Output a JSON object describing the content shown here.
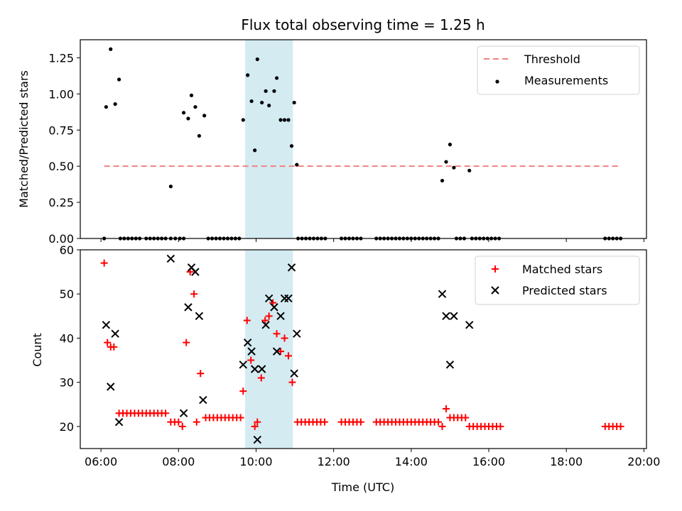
{
  "chart_data": [
    {
      "type": "scatter",
      "title": "Flux total observing time = 1.25 h",
      "xlabel": "",
      "ylabel": "Matched/Predicted stars",
      "xlim": [
        "05:28",
        "20:04"
      ],
      "ylim": [
        0,
        1.375
      ],
      "ytick_labels": [
        "0.00",
        "0.25",
        "0.50",
        "0.75",
        "1.00",
        "1.25"
      ],
      "highlight_span": [
        "09:43",
        "10:57"
      ],
      "highlight_color": "#add8e6",
      "threshold": {
        "name": "Threshold",
        "value": 0.5,
        "x_range": [
          "06:05",
          "19:25"
        ],
        "color": "#f08080",
        "style": "dashed"
      },
      "series": [
        {
          "name": "Measurements",
          "color": "#000000",
          "marker": "dot",
          "points": [
            [
              "06:05",
              0
            ],
            [
              "06:08",
              0.91
            ],
            [
              "06:15",
              1.31
            ],
            [
              "06:22",
              0.93
            ],
            [
              "06:28",
              1.1
            ],
            [
              "06:30",
              0
            ],
            [
              "06:36",
              0
            ],
            [
              "06:42",
              0
            ],
            [
              "06:48",
              0
            ],
            [
              "06:54",
              0
            ],
            [
              "07:00",
              0
            ],
            [
              "07:10",
              0
            ],
            [
              "07:16",
              0
            ],
            [
              "07:22",
              0
            ],
            [
              "07:28",
              0
            ],
            [
              "07:34",
              0
            ],
            [
              "07:40",
              0
            ],
            [
              "07:48",
              0
            ],
            [
              "07:48",
              0.36
            ],
            [
              "07:55",
              0
            ],
            [
              "08:02",
              0
            ],
            [
              "08:08",
              0
            ],
            [
              "08:08",
              0.87
            ],
            [
              "08:15",
              0.83
            ],
            [
              "08:20",
              0.99
            ],
            [
              "08:26",
              0.91
            ],
            [
              "08:32",
              0.71
            ],
            [
              "08:40",
              0.85
            ],
            [
              "08:46",
              0
            ],
            [
              "08:52",
              0
            ],
            [
              "08:58",
              0
            ],
            [
              "09:04",
              0
            ],
            [
              "09:10",
              0
            ],
            [
              "09:16",
              0
            ],
            [
              "09:22",
              0
            ],
            [
              "09:28",
              0
            ],
            [
              "09:34",
              0
            ],
            [
              "09:40",
              0.82
            ],
            [
              "09:47",
              1.13
            ],
            [
              "09:53",
              0.95
            ],
            [
              "09:58",
              0.61
            ],
            [
              "10:02",
              1.24
            ],
            [
              "10:09",
              0.94
            ],
            [
              "10:15",
              1.02
            ],
            [
              "10:20",
              0.92
            ],
            [
              "10:28",
              1.02
            ],
            [
              "10:32",
              1.11
            ],
            [
              "10:38",
              0.82
            ],
            [
              "10:44",
              0.82
            ],
            [
              "10:50",
              0.82
            ],
            [
              "10:55",
              0.64
            ],
            [
              "10:59",
              0.94
            ],
            [
              "11:03",
              0.51
            ],
            [
              "11:05",
              0
            ],
            [
              "11:11",
              0
            ],
            [
              "11:17",
              0
            ],
            [
              "11:23",
              0
            ],
            [
              "11:29",
              0
            ],
            [
              "11:35",
              0
            ],
            [
              "11:41",
              0
            ],
            [
              "11:47",
              0
            ],
            [
              "12:12",
              0
            ],
            [
              "12:18",
              0
            ],
            [
              "12:24",
              0
            ],
            [
              "12:30",
              0
            ],
            [
              "12:36",
              0
            ],
            [
              "12:42",
              0
            ],
            [
              "13:06",
              0
            ],
            [
              "13:12",
              0
            ],
            [
              "13:18",
              0
            ],
            [
              "13:24",
              0
            ],
            [
              "13:30",
              0
            ],
            [
              "13:36",
              0
            ],
            [
              "13:42",
              0
            ],
            [
              "13:48",
              0
            ],
            [
              "13:54",
              0
            ],
            [
              "14:00",
              0
            ],
            [
              "14:06",
              0
            ],
            [
              "14:12",
              0
            ],
            [
              "14:18",
              0
            ],
            [
              "14:24",
              0
            ],
            [
              "14:30",
              0
            ],
            [
              "14:36",
              0
            ],
            [
              "14:42",
              0
            ],
            [
              "14:48",
              0.4
            ],
            [
              "14:54",
              0.53
            ],
            [
              "15:00",
              0.65
            ],
            [
              "15:06",
              0.49
            ],
            [
              "15:10",
              0
            ],
            [
              "15:16",
              0
            ],
            [
              "15:22",
              0
            ],
            [
              "15:30",
              0.47
            ],
            [
              "15:34",
              0
            ],
            [
              "15:40",
              0
            ],
            [
              "15:46",
              0
            ],
            [
              "15:52",
              0
            ],
            [
              "15:58",
              0
            ],
            [
              "16:04",
              0
            ],
            [
              "16:10",
              0
            ],
            [
              "16:16",
              0
            ],
            [
              "19:00",
              0
            ],
            [
              "19:06",
              0
            ],
            [
              "19:12",
              0
            ],
            [
              "19:18",
              0
            ],
            [
              "19:24",
              0
            ]
          ]
        }
      ],
      "legend_position": "upper-right"
    },
    {
      "type": "scatter",
      "title": "",
      "xlabel": "Time (UTC)",
      "ylabel": "Count",
      "xlim": [
        "05:28",
        "20:04"
      ],
      "ylim": [
        15,
        60
      ],
      "xtick_labels": [
        "06:00",
        "08:00",
        "10:00",
        "12:00",
        "14:00",
        "16:00",
        "18:00",
        "20:00"
      ],
      "ytick_labels": [
        "20",
        "30",
        "40",
        "50",
        "60"
      ],
      "highlight_span": [
        "09:43",
        "10:57"
      ],
      "series": [
        {
          "name": "Matched stars",
          "color": "#ff0000",
          "marker": "plus",
          "points": [
            [
              "06:05",
              57
            ],
            [
              "06:10",
              39
            ],
            [
              "06:15",
              38
            ],
            [
              "06:20",
              38
            ],
            [
              "06:28",
              23
            ],
            [
              "06:34",
              23
            ],
            [
              "06:40",
              23
            ],
            [
              "06:46",
              23
            ],
            [
              "06:52",
              23
            ],
            [
              "06:58",
              23
            ],
            [
              "07:04",
              23
            ],
            [
              "07:10",
              23
            ],
            [
              "07:16",
              23
            ],
            [
              "07:22",
              23
            ],
            [
              "07:28",
              23
            ],
            [
              "07:34",
              23
            ],
            [
              "07:40",
              23
            ],
            [
              "07:48",
              21
            ],
            [
              "07:54",
              21
            ],
            [
              "08:00",
              21
            ],
            [
              "08:06",
              20
            ],
            [
              "08:12",
              39
            ],
            [
              "08:18",
              55
            ],
            [
              "08:24",
              50
            ],
            [
              "08:28",
              21
            ],
            [
              "08:34",
              32
            ],
            [
              "08:42",
              22
            ],
            [
              "08:48",
              22
            ],
            [
              "08:54",
              22
            ],
            [
              "09:00",
              22
            ],
            [
              "09:06",
              22
            ],
            [
              "09:12",
              22
            ],
            [
              "09:18",
              22
            ],
            [
              "09:24",
              22
            ],
            [
              "09:30",
              22
            ],
            [
              "09:36",
              22
            ],
            [
              "09:40",
              28
            ],
            [
              "09:46",
              44
            ],
            [
              "09:52",
              35
            ],
            [
              "09:58",
              20
            ],
            [
              "10:02",
              21
            ],
            [
              "10:08",
              31
            ],
            [
              "10:14",
              44
            ],
            [
              "10:20",
              45
            ],
            [
              "10:26",
              48
            ],
            [
              "10:32",
              41
            ],
            [
              "10:38",
              37
            ],
            [
              "10:44",
              40
            ],
            [
              "10:50",
              36
            ],
            [
              "10:56",
              30
            ],
            [
              "11:04",
              21
            ],
            [
              "11:10",
              21
            ],
            [
              "11:16",
              21
            ],
            [
              "11:22",
              21
            ],
            [
              "11:28",
              21
            ],
            [
              "11:34",
              21
            ],
            [
              "11:40",
              21
            ],
            [
              "11:46",
              21
            ],
            [
              "12:12",
              21
            ],
            [
              "12:18",
              21
            ],
            [
              "12:24",
              21
            ],
            [
              "12:30",
              21
            ],
            [
              "12:36",
              21
            ],
            [
              "12:42",
              21
            ],
            [
              "13:06",
              21
            ],
            [
              "13:12",
              21
            ],
            [
              "13:18",
              21
            ],
            [
              "13:24",
              21
            ],
            [
              "13:30",
              21
            ],
            [
              "13:36",
              21
            ],
            [
              "13:42",
              21
            ],
            [
              "13:48",
              21
            ],
            [
              "13:54",
              21
            ],
            [
              "14:00",
              21
            ],
            [
              "14:06",
              21
            ],
            [
              "14:12",
              21
            ],
            [
              "14:18",
              21
            ],
            [
              "14:24",
              21
            ],
            [
              "14:30",
              21
            ],
            [
              "14:36",
              21
            ],
            [
              "14:42",
              21
            ],
            [
              "14:48",
              20
            ],
            [
              "14:54",
              24
            ],
            [
              "15:00",
              22
            ],
            [
              "15:06",
              22
            ],
            [
              "15:12",
              22
            ],
            [
              "15:18",
              22
            ],
            [
              "15:24",
              22
            ],
            [
              "15:30",
              20
            ],
            [
              "15:36",
              20
            ],
            [
              "15:42",
              20
            ],
            [
              "15:48",
              20
            ],
            [
              "15:54",
              20
            ],
            [
              "16:00",
              20
            ],
            [
              "16:06",
              20
            ],
            [
              "16:12",
              20
            ],
            [
              "16:18",
              20
            ],
            [
              "19:00",
              20
            ],
            [
              "19:06",
              20
            ],
            [
              "19:12",
              20
            ],
            [
              "19:18",
              20
            ],
            [
              "19:24",
              20
            ]
          ]
        },
        {
          "name": "Predicted stars",
          "color": "#000000",
          "marker": "x",
          "points": [
            [
              "06:08",
              43
            ],
            [
              "06:15",
              29
            ],
            [
              "06:22",
              41
            ],
            [
              "06:28",
              21
            ],
            [
              "07:48",
              58
            ],
            [
              "08:08",
              23
            ],
            [
              "08:15",
              47
            ],
            [
              "08:20",
              56
            ],
            [
              "08:26",
              55
            ],
            [
              "08:32",
              45
            ],
            [
              "08:38",
              26
            ],
            [
              "09:40",
              34
            ],
            [
              "09:47",
              39
            ],
            [
              "09:53",
              37
            ],
            [
              "09:58",
              33
            ],
            [
              "10:02",
              17
            ],
            [
              "10:09",
              33
            ],
            [
              "10:15",
              43
            ],
            [
              "10:20",
              49
            ],
            [
              "10:28",
              47
            ],
            [
              "10:32",
              37
            ],
            [
              "10:38",
              45
            ],
            [
              "10:44",
              49
            ],
            [
              "10:50",
              49
            ],
            [
              "10:55",
              56
            ],
            [
              "10:59",
              32
            ],
            [
              "11:03",
              41
            ],
            [
              "14:48",
              50
            ],
            [
              "14:54",
              45
            ],
            [
              "15:00",
              34
            ],
            [
              "15:06",
              45
            ],
            [
              "15:30",
              43
            ]
          ]
        }
      ],
      "legend_position": "upper-right"
    }
  ]
}
